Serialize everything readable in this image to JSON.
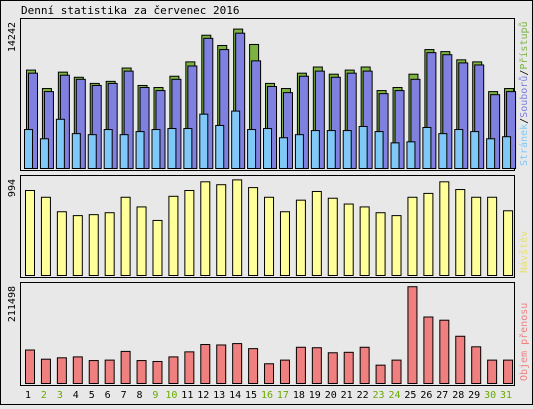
{
  "chart_data": {
    "type": "bar",
    "title": "Denní statistika za červenec 2016",
    "categories": [
      "1",
      "2",
      "3",
      "4",
      "5",
      "6",
      "7",
      "8",
      "9",
      "10",
      "11",
      "12",
      "13",
      "14",
      "15",
      "16",
      "17",
      "18",
      "19",
      "20",
      "21",
      "22",
      "23",
      "24",
      "25",
      "26",
      "27",
      "28",
      "29",
      "30",
      "31"
    ],
    "weekend_days": [
      "2",
      "3",
      "9",
      "10",
      "16",
      "17",
      "23",
      "24",
      "30",
      "31"
    ],
    "colors": {
      "pristupu": "#7cb342",
      "souboru": "#8080e0",
      "stranek": "#80c8f8",
      "navstev": "#ffff99",
      "prenos": "#f08080",
      "weekend_label": "#66aa00",
      "weekday_label": "#000000"
    },
    "panels": [
      {
        "id": "requests",
        "ylabel": "14242",
        "ymax": 14242,
        "legend_parts": [
          "Stránek",
          "/",
          "Souborů",
          "/",
          "Přístupů"
        ],
        "series": [
          {
            "name": "Přístupů",
            "values": [
              9600,
              7800,
              9400,
              8900,
              8300,
              8500,
              9800,
              8100,
              7900,
              9000,
              10400,
              13000,
              12000,
              13600,
              12100,
              8300,
              7800,
              9300,
              9900,
              9200,
              9600,
              9900,
              7600,
              7900,
              9200,
              11600,
              11400,
              10600,
              10400,
              7500,
              7800
            ]
          },
          {
            "name": "Souborů",
            "values": [
              9300,
              7500,
              9100,
              8700,
              8100,
              8300,
              9500,
              7900,
              7600,
              8700,
              10000,
              12700,
              11600,
              13200,
              10500,
              8000,
              7400,
              9000,
              9500,
              8900,
              9300,
              9500,
              7300,
              7600,
              8700,
              11300,
              11100,
              10300,
              10100,
              7200,
              7500
            ]
          },
          {
            "name": "Stránek",
            "values": [
              3800,
              2900,
              4800,
              3400,
              3300,
              3800,
              3300,
              3600,
              3800,
              3900,
              3900,
              5300,
              4200,
              5600,
              3800,
              3900,
              3000,
              3300,
              3700,
              3700,
              3700,
              4100,
              3600,
              2500,
              2600,
              4000,
              3400,
              3800,
              3600,
              2900,
              3100
            ]
          }
        ]
      },
      {
        "id": "visits",
        "ylabel": "994",
        "ymax": 994,
        "legend_parts": [
          "Návštěv"
        ],
        "series": [
          {
            "name": "Návštěv",
            "values": [
              880,
              810,
              660,
              620,
              630,
              650,
              810,
              710,
              570,
              820,
              880,
              970,
              940,
              990,
              910,
              810,
              660,
              780,
              870,
              800,
              740,
              710,
              650,
              620,
              810,
              850,
              970,
              890,
              810,
              810,
              670
            ]
          }
        ]
      },
      {
        "id": "transfer",
        "ylabel": "211498",
        "ymax": 211498,
        "legend_parts": [
          "Objem přenosu"
        ],
        "series": [
          {
            "name": "Objem přenosu",
            "values": [
              73000,
              53000,
              56000,
              58000,
              50000,
              51000,
              70000,
              50000,
              48000,
              58000,
              69000,
              85000,
              84000,
              87000,
              76000,
              43000,
              51000,
              79000,
              78000,
              67000,
              68000,
              79000,
              40000,
              51000,
              211000,
              145000,
              138000,
              103000,
              80000,
              51000,
              51000
            ]
          }
        ]
      }
    ]
  }
}
